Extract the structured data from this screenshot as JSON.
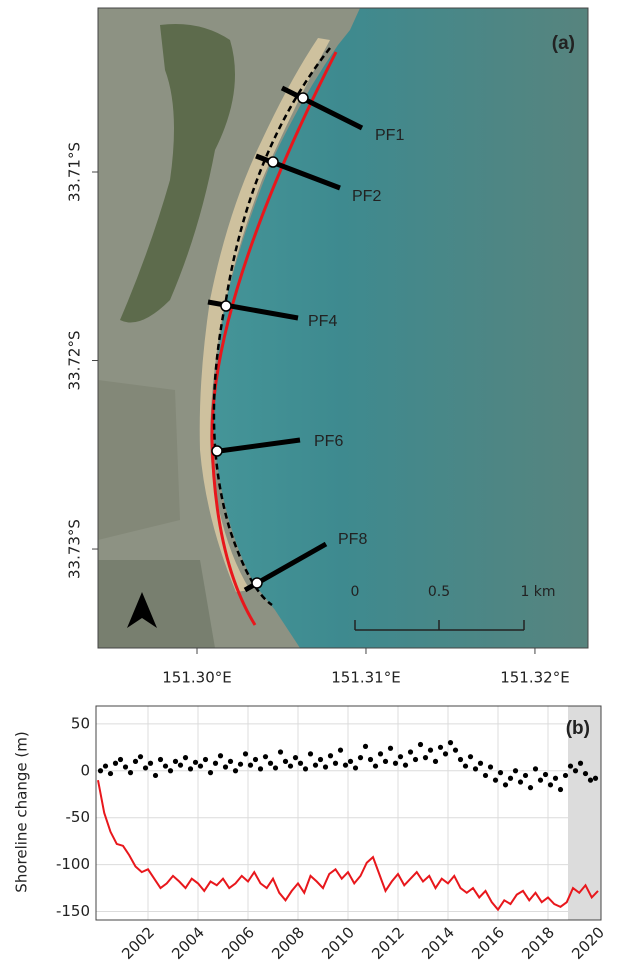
{
  "chart_data": [
    {
      "type": "map",
      "annotation": "(a)",
      "xlim": [
        151.29414,
        151.32314
      ],
      "ylim": [
        -33.73525,
        -33.7013
      ],
      "xticks": [
        {
          "value": 151.3,
          "label": "151.30°E"
        },
        {
          "value": 151.31,
          "label": "151.31°E"
        },
        {
          "value": 151.32,
          "label": "151.32°E"
        }
      ],
      "yticks": [
        {
          "value": -33.71,
          "label": "33.71°S"
        },
        {
          "value": -33.72,
          "label": "33.72°S"
        },
        {
          "value": -33.73,
          "label": "33.73°S"
        }
      ],
      "profiles": [
        "PF1",
        "PF2",
        "PF4",
        "PF6",
        "PF8"
      ],
      "scale_bar": [
        "0",
        "0.5",
        "1 km"
      ]
    },
    {
      "type": "line",
      "annotation": "(b)",
      "ylabel": "Shoreline change (m)",
      "xlim": [
        1999.92,
        2020.12
      ],
      "ylim": [
        -159,
        69
      ],
      "xticks": [
        2002,
        2004,
        2006,
        2008,
        2010,
        2012,
        2014,
        2016,
        2018,
        2020
      ],
      "yticks": [
        50,
        0,
        -50,
        -100,
        -150
      ],
      "grid": true,
      "shaded_xlim": [
        2018.8,
        2020.12
      ],
      "shade_color": "#dcdcdc",
      "series": [
        {
          "color": "#e8171c",
          "mode": "line",
          "x": [
            2000.0,
            2000.25,
            2000.5,
            2000.75,
            2001.0,
            2001.25,
            2001.5,
            2001.75,
            2002.0,
            2002.25,
            2002.5,
            2002.75,
            2003.0,
            2003.25,
            2003.5,
            2003.75,
            2004.0,
            2004.25,
            2004.5,
            2004.75,
            2005.0,
            2005.25,
            2005.5,
            2005.75,
            2006.0,
            2006.25,
            2006.5,
            2006.75,
            2007.0,
            2007.25,
            2007.5,
            2007.75,
            2008.0,
            2008.25,
            2008.5,
            2008.75,
            2009.0,
            2009.25,
            2009.5,
            2009.75,
            2010.0,
            2010.25,
            2010.5,
            2010.75,
            2011.0,
            2011.25,
            2011.5,
            2011.75,
            2012.0,
            2012.25,
            2012.5,
            2012.75,
            2013.0,
            2013.25,
            2013.5,
            2013.75,
            2014.0,
            2014.25,
            2014.5,
            2014.75,
            2015.0,
            2015.25,
            2015.5,
            2015.75,
            2016.0,
            2016.25,
            2016.5,
            2016.75,
            2017.0,
            2017.25,
            2017.5,
            2017.75,
            2018.0,
            2018.25,
            2018.5,
            2018.75,
            2019.0,
            2019.25,
            2019.5,
            2019.75,
            2020.0
          ],
          "values": [
            -10,
            -45,
            -65,
            -78,
            -80,
            -90,
            -102,
            -108,
            -105,
            -115,
            -125,
            -120,
            -112,
            -118,
            -125,
            -115,
            -120,
            -128,
            -118,
            -122,
            -115,
            -125,
            -120,
            -112,
            -118,
            -108,
            -120,
            -125,
            -115,
            -130,
            -138,
            -128,
            -120,
            -130,
            -112,
            -118,
            -125,
            -110,
            -105,
            -115,
            -108,
            -120,
            -112,
            -98,
            -92,
            -110,
            -128,
            -118,
            -110,
            -122,
            -115,
            -108,
            -118,
            -112,
            -125,
            -115,
            -120,
            -112,
            -125,
            -130,
            -125,
            -135,
            -128,
            -140,
            -148,
            -138,
            -142,
            -132,
            -128,
            -138,
            -130,
            -140,
            -135,
            -142,
            -145,
            -140,
            -125,
            -130,
            -122,
            -135,
            -128
          ]
        },
        {
          "color": "#000000",
          "mode": "markers",
          "x": [
            2000.1,
            2000.3,
            2000.5,
            2000.7,
            2000.9,
            2001.1,
            2001.3,
            2001.5,
            2001.7,
            2001.9,
            2002.1,
            2002.3,
            2002.5,
            2002.7,
            2002.9,
            2003.1,
            2003.3,
            2003.5,
            2003.7,
            2003.9,
            2004.1,
            2004.3,
            2004.5,
            2004.7,
            2004.9,
            2005.1,
            2005.3,
            2005.5,
            2005.7,
            2005.9,
            2006.1,
            2006.3,
            2006.5,
            2006.7,
            2006.9,
            2007.1,
            2007.3,
            2007.5,
            2007.7,
            2007.9,
            2008.1,
            2008.3,
            2008.5,
            2008.7,
            2008.9,
            2009.1,
            2009.3,
            2009.5,
            2009.7,
            2009.9,
            2010.1,
            2010.3,
            2010.5,
            2010.7,
            2010.9,
            2011.1,
            2011.3,
            2011.5,
            2011.7,
            2011.9,
            2012.1,
            2012.3,
            2012.5,
            2012.7,
            2012.9,
            2013.1,
            2013.3,
            2013.5,
            2013.7,
            2013.9,
            2014.1,
            2014.3,
            2014.5,
            2014.7,
            2014.9,
            2015.1,
            2015.3,
            2015.5,
            2015.7,
            2015.9,
            2016.1,
            2016.3,
            2016.5,
            2016.7,
            2016.9,
            2017.1,
            2017.3,
            2017.5,
            2017.7,
            2017.9,
            2018.1,
            2018.3,
            2018.5,
            2018.7,
            2018.9,
            2019.1,
            2019.3,
            2019.5,
            2019.7,
            2019.9
          ],
          "values": [
            0,
            5,
            -3,
            8,
            12,
            4,
            -2,
            10,
            15,
            3,
            8,
            -5,
            12,
            5,
            0,
            10,
            6,
            14,
            2,
            9,
            5,
            12,
            -2,
            8,
            16,
            4,
            10,
            0,
            7,
            18,
            6,
            12,
            2,
            15,
            8,
            3,
            20,
            10,
            5,
            14,
            8,
            2,
            18,
            6,
            12,
            4,
            16,
            8,
            22,
            6,
            10,
            3,
            14,
            26,
            12,
            5,
            18,
            10,
            24,
            8,
            15,
            6,
            20,
            12,
            28,
            14,
            22,
            10,
            25,
            18,
            30,
            22,
            12,
            5,
            15,
            2,
            8,
            -5,
            4,
            -10,
            -2,
            -15,
            -8,
            0,
            -12,
            -5,
            -18,
            2,
            -10,
            -4,
            -15,
            -8,
            -20,
            -5,
            5,
            0,
            8,
            -3,
            -10,
            -8
          ]
        }
      ]
    }
  ]
}
